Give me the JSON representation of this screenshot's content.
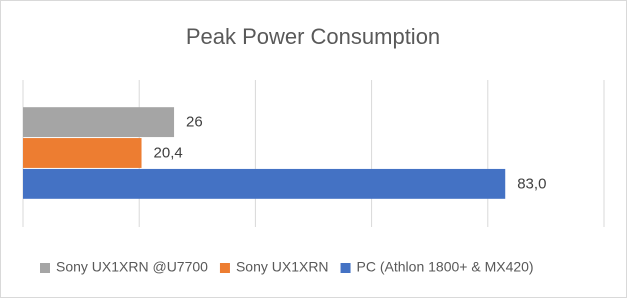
{
  "chart_data": {
    "type": "bar",
    "orientation": "horizontal",
    "title": "Peak Power Consumption",
    "categories": [
      null
    ],
    "series": [
      {
        "name": "Sony UX1XRN @U7700",
        "color": "#a5a5a5",
        "values": [
          26
        ],
        "value_labels": [
          "26"
        ]
      },
      {
        "name": "Sony UX1XRN",
        "color": "#ed7d31",
        "values": [
          20.4
        ],
        "value_labels": [
          "20,4"
        ]
      },
      {
        "name": "PC (Athlon 1800+ & MX420)",
        "color": "#4472c4",
        "values": [
          83.0
        ],
        "value_labels": [
          "83,0"
        ]
      }
    ],
    "xlim": [
      0,
      100
    ],
    "xticks": [
      0,
      20,
      40,
      60,
      80,
      100
    ],
    "grid": true,
    "legend": "bottom"
  }
}
